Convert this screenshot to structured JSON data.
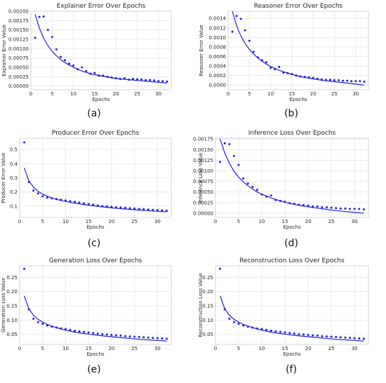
{
  "colors": {
    "marker": "#1f1fd6",
    "curve": "#1f1fd6",
    "grid": "#e6e6e6",
    "frame": "#cccccc"
  },
  "panels": [
    {
      "label": "(a)"
    },
    {
      "label": "(b)"
    },
    {
      "label": "(c)"
    },
    {
      "label": "(d)"
    },
    {
      "label": "(e)"
    },
    {
      "label": "(f)"
    }
  ],
  "chart_data": [
    {
      "type": "scatter",
      "title": "Explainer Error Over Epochs",
      "xlabel": "Epochs",
      "ylabel": "Explainer Error Value",
      "xlim": [
        0,
        33
      ],
      "ylim": [
        -0.0001,
        0.002
      ],
      "xticks": [
        0,
        5,
        10,
        15,
        20,
        25,
        30
      ],
      "yticks": [
        0.0,
        0.00025,
        0.0005,
        0.00075,
        0.001,
        0.00125,
        0.0015,
        0.00175,
        0.002
      ],
      "ytick_labels": [
        "0.00000",
        "0.00025",
        "0.00050",
        "0.00075",
        "0.00100",
        "0.00125",
        "0.00150",
        "0.00175",
        "0.00200"
      ],
      "grid": true,
      "series": [
        {
          "kind": "points",
          "x": [
            1,
            2,
            3,
            4,
            5,
            6,
            7,
            8,
            9,
            10,
            11,
            12,
            13,
            14,
            15,
            16,
            17,
            18,
            19,
            20,
            21,
            22,
            23,
            24,
            25,
            26,
            27,
            28,
            29,
            30,
            31,
            32
          ],
          "y": [
            0.00129,
            0.00185,
            0.00186,
            0.0015,
            0.00131,
            0.00098,
            0.00078,
            0.00069,
            0.0006,
            0.00055,
            0.00045,
            0.0005,
            0.0004,
            0.00033,
            0.00035,
            0.00028,
            0.00028,
            0.00025,
            0.00023,
            0.00021,
            0.00019,
            0.00021,
            0.00017,
            0.00019,
            0.00018,
            0.00018,
            0.00016,
            0.00016,
            0.00015,
            0.00013,
            0.00013,
            0.00012
          ]
        },
        {
          "kind": "line",
          "x": [
            1,
            2,
            3,
            4,
            5,
            6,
            7,
            8,
            9,
            10,
            12,
            14,
            16,
            18,
            20,
            22,
            24,
            26,
            28,
            30,
            32
          ],
          "y": [
            0.00192,
            0.00155,
            0.00128,
            0.00108,
            0.00093,
            0.00081,
            0.00071,
            0.00063,
            0.00056,
            0.0005,
            0.0004,
            0.00033,
            0.00028,
            0.00024,
            0.0002,
            0.00018,
            0.00016,
            0.00014,
            0.00012,
            0.0001,
            8e-05
          ]
        }
      ]
    },
    {
      "type": "scatter",
      "title": "Reasoner Error Over Epochs",
      "xlabel": "Epochs",
      "ylabel": "Reasoner Error Value",
      "xlim": [
        0,
        33
      ],
      "ylim": [
        -0.0001,
        0.00155
      ],
      "xticks": [
        0,
        5,
        10,
        15,
        20,
        25,
        30
      ],
      "yticks": [
        0.0,
        0.0002,
        0.0004,
        0.0006,
        0.0008,
        0.001,
        0.0012,
        0.0014
      ],
      "ytick_labels": [
        "0.0000",
        "0.0002",
        "0.0004",
        "0.0006",
        "0.0008",
        "0.0010",
        "0.0012",
        "0.0014"
      ],
      "grid": true,
      "series": [
        {
          "kind": "points",
          "x": [
            1,
            2,
            3,
            4,
            5,
            6,
            7,
            8,
            9,
            10,
            11,
            12,
            13,
            14,
            15,
            16,
            17,
            18,
            19,
            20,
            21,
            22,
            23,
            24,
            25,
            26,
            27,
            28,
            29,
            30,
            31,
            32
          ],
          "y": [
            0.00112,
            0.00145,
            0.00139,
            0.00115,
            0.00093,
            0.0007,
            0.00058,
            0.00052,
            0.00048,
            0.00036,
            0.00033,
            0.00038,
            0.00026,
            0.00025,
            0.00023,
            0.0002,
            0.00018,
            0.00017,
            0.00016,
            0.00015,
            0.00013,
            0.00012,
            0.00011,
            0.00011,
            0.0001,
            0.0001,
            9e-05,
            9e-05,
            8e-05,
            8e-05,
            8e-05,
            7e-05
          ]
        },
        {
          "kind": "line",
          "x": [
            1,
            2,
            3,
            4,
            5,
            6,
            7,
            8,
            9,
            10,
            12,
            14,
            16,
            18,
            20,
            22,
            24,
            26,
            28,
            30,
            32
          ],
          "y": [
            0.00155,
            0.00125,
            0.00103,
            0.00087,
            0.00075,
            0.00065,
            0.00057,
            0.0005,
            0.00044,
            0.00039,
            0.00031,
            0.00025,
            0.0002,
            0.00016,
            0.00013,
            0.0001,
            8e-05,
            6e-05,
            4e-05,
            2e-05,
            0.0
          ]
        }
      ]
    },
    {
      "type": "scatter",
      "title": "Producer Error Over Epochs",
      "xlabel": "Epochs",
      "ylabel": "Producer Error Value",
      "xlim": [
        0,
        33
      ],
      "ylim": [
        0.02,
        0.58
      ],
      "xticks": [
        0,
        5,
        10,
        15,
        20,
        25,
        30
      ],
      "yticks": [
        0.1,
        0.2,
        0.3,
        0.4,
        0.5
      ],
      "ytick_labels": [
        "0.1",
        "0.2",
        "0.3",
        "0.4",
        "0.5"
      ],
      "grid": true,
      "series": [
        {
          "kind": "points",
          "x": [
            1,
            2,
            3,
            4,
            5,
            6,
            7,
            8,
            9,
            10,
            11,
            12,
            13,
            14,
            15,
            16,
            17,
            18,
            19,
            20,
            21,
            22,
            23,
            24,
            25,
            26,
            27,
            28,
            29,
            30,
            31,
            32
          ],
          "y": [
            0.55,
            0.27,
            0.21,
            0.19,
            0.17,
            0.16,
            0.155,
            0.15,
            0.145,
            0.14,
            0.135,
            0.13,
            0.125,
            0.12,
            0.115,
            0.11,
            0.105,
            0.1,
            0.098,
            0.095,
            0.092,
            0.09,
            0.088,
            0.085,
            0.083,
            0.08,
            0.078,
            0.076,
            0.074,
            0.072,
            0.07,
            0.068
          ]
        },
        {
          "kind": "line",
          "x": [
            1,
            2,
            3,
            4,
            5,
            6,
            7,
            8,
            9,
            10,
            12,
            14,
            16,
            18,
            20,
            22,
            24,
            26,
            28,
            30,
            32
          ],
          "y": [
            0.37,
            0.28,
            0.235,
            0.205,
            0.185,
            0.17,
            0.158,
            0.148,
            0.14,
            0.133,
            0.121,
            0.111,
            0.102,
            0.095,
            0.088,
            0.082,
            0.077,
            0.072,
            0.068,
            0.063,
            0.06
          ]
        }
      ]
    },
    {
      "type": "scatter",
      "title": "Inference Loss Over Epochs",
      "xlabel": "Epochs",
      "ylabel": "Inference Loss Value",
      "xlim": [
        0,
        33
      ],
      "ylim": [
        -0.0001,
        0.00177
      ],
      "xticks": [
        0,
        5,
        10,
        15,
        20,
        25,
        30
      ],
      "yticks": [
        0.0,
        0.00025,
        0.0005,
        0.00075,
        0.001,
        0.00125,
        0.0015,
        0.00175
      ],
      "ytick_labels": [
        "0.00000",
        "0.00025",
        "0.00050",
        "0.00075",
        "0.00100",
        "0.00125",
        "0.00150",
        "0.00175"
      ],
      "grid": true,
      "series": [
        {
          "kind": "points",
          "x": [
            1,
            2,
            3,
            4,
            5,
            6,
            7,
            8,
            9,
            10,
            11,
            12,
            13,
            14,
            15,
            16,
            17,
            18,
            19,
            20,
            21,
            22,
            23,
            24,
            25,
            26,
            27,
            28,
            29,
            30,
            31,
            32
          ],
          "y": [
            0.00121,
            0.00165,
            0.00163,
            0.00135,
            0.00114,
            0.00082,
            0.0007,
            0.00062,
            0.00055,
            0.00044,
            0.00039,
            0.00042,
            0.00031,
            0.00029,
            0.00027,
            0.00024,
            0.00022,
            0.0002,
            0.00019,
            0.00018,
            0.00016,
            0.00016,
            0.00014,
            0.00014,
            0.00013,
            0.00012,
            0.00011,
            0.00011,
            0.0001,
            0.0001,
            0.0001,
            9e-05
          ]
        },
        {
          "kind": "line",
          "x": [
            1,
            2,
            3,
            4,
            5,
            6,
            7,
            8,
            9,
            10,
            12,
            14,
            16,
            18,
            20,
            22,
            24,
            26,
            28,
            30,
            32
          ],
          "y": [
            0.00175,
            0.00142,
            0.00118,
            0.00099,
            0.00085,
            0.00074,
            0.00065,
            0.00057,
            0.0005,
            0.00045,
            0.00036,
            0.00029,
            0.00023,
            0.00019,
            0.00015,
            0.00012,
            9e-05,
            6e-05,
            4e-05,
            2e-05,
            0.0
          ]
        }
      ]
    },
    {
      "type": "scatter",
      "title": "Generation Loss Over Epochs",
      "xlabel": "Epochs",
      "ylabel": "Generation Loss Value",
      "xlim": [
        0,
        33
      ],
      "ylim": [
        0.015,
        0.29
      ],
      "xticks": [
        0,
        5,
        10,
        15,
        20,
        25,
        30
      ],
      "yticks": [
        0.05,
        0.1,
        0.15,
        0.2,
        0.25
      ],
      "ytick_labels": [
        "0.05",
        "0.10",
        "0.15",
        "0.20",
        "0.25"
      ],
      "grid": true,
      "series": [
        {
          "kind": "points",
          "x": [
            1,
            2,
            3,
            4,
            5,
            6,
            7,
            8,
            9,
            10,
            11,
            12,
            13,
            14,
            15,
            16,
            17,
            18,
            19,
            20,
            21,
            22,
            23,
            24,
            25,
            26,
            27,
            28,
            29,
            30,
            31,
            32
          ],
          "y": [
            0.28,
            0.138,
            0.105,
            0.093,
            0.087,
            0.081,
            0.077,
            0.074,
            0.071,
            0.069,
            0.066,
            0.063,
            0.061,
            0.059,
            0.057,
            0.055,
            0.053,
            0.051,
            0.05,
            0.048,
            0.047,
            0.046,
            0.044,
            0.043,
            0.042,
            0.041,
            0.04,
            0.039,
            0.038,
            0.037,
            0.036,
            0.035
          ]
        },
        {
          "kind": "line",
          "x": [
            1,
            2,
            3,
            4,
            5,
            6,
            7,
            8,
            9,
            10,
            12,
            14,
            16,
            18,
            20,
            22,
            24,
            26,
            28,
            30,
            32
          ],
          "y": [
            0.185,
            0.14,
            0.117,
            0.103,
            0.093,
            0.085,
            0.079,
            0.074,
            0.069,
            0.065,
            0.058,
            0.053,
            0.049,
            0.045,
            0.042,
            0.039,
            0.036,
            0.033,
            0.031,
            0.029,
            0.027
          ]
        }
      ]
    },
    {
      "type": "scatter",
      "title": "Reconstruction Loss Over Epochs",
      "xlabel": "Epochs",
      "ylabel": "Reconstruction Loss Value",
      "xlim": [
        0,
        33
      ],
      "ylim": [
        0.015,
        0.29
      ],
      "xticks": [
        0,
        5,
        10,
        15,
        20,
        25,
        30
      ],
      "yticks": [
        0.05,
        0.1,
        0.15,
        0.2,
        0.25
      ],
      "ytick_labels": [
        "0.05",
        "0.10",
        "0.15",
        "0.20",
        "0.25"
      ],
      "grid": true,
      "series": [
        {
          "kind": "points",
          "x": [
            1,
            2,
            3,
            4,
            5,
            6,
            7,
            8,
            9,
            10,
            11,
            12,
            13,
            14,
            15,
            16,
            17,
            18,
            19,
            20,
            21,
            22,
            23,
            24,
            25,
            26,
            27,
            28,
            29,
            30,
            31,
            32
          ],
          "y": [
            0.28,
            0.138,
            0.105,
            0.093,
            0.087,
            0.081,
            0.077,
            0.074,
            0.071,
            0.069,
            0.066,
            0.063,
            0.061,
            0.059,
            0.057,
            0.055,
            0.053,
            0.051,
            0.05,
            0.048,
            0.047,
            0.046,
            0.044,
            0.043,
            0.042,
            0.041,
            0.04,
            0.039,
            0.038,
            0.037,
            0.036,
            0.035
          ]
        },
        {
          "kind": "line",
          "x": [
            1,
            2,
            3,
            4,
            5,
            6,
            7,
            8,
            9,
            10,
            12,
            14,
            16,
            18,
            20,
            22,
            24,
            26,
            28,
            30,
            32
          ],
          "y": [
            0.185,
            0.14,
            0.117,
            0.103,
            0.093,
            0.085,
            0.079,
            0.074,
            0.069,
            0.065,
            0.058,
            0.053,
            0.049,
            0.045,
            0.042,
            0.039,
            0.036,
            0.033,
            0.031,
            0.029,
            0.027
          ]
        }
      ]
    }
  ]
}
